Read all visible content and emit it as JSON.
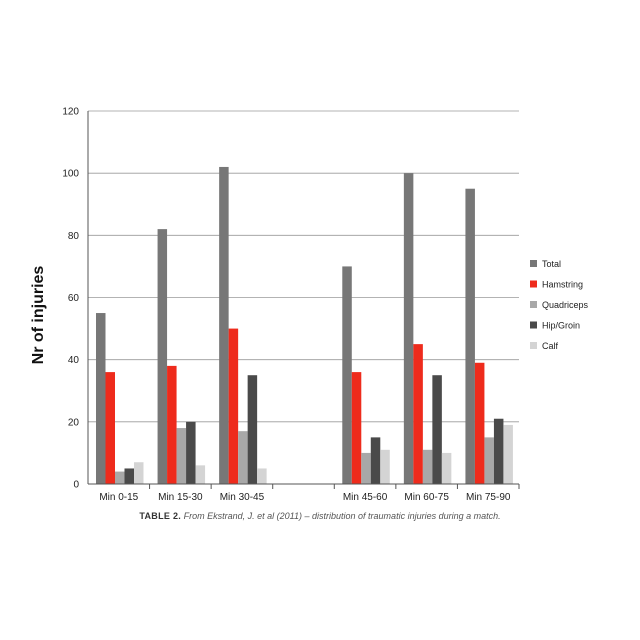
{
  "chart_data": {
    "type": "bar",
    "categories": [
      "Min 0-15",
      "Min 15-30",
      "Min 30-45",
      "",
      "Min 45-60",
      "Min 60-75",
      "Min 75-90"
    ],
    "series": [
      {
        "name": "Total",
        "color": "#777777",
        "values": [
          55,
          82,
          102,
          null,
          70,
          100,
          95
        ]
      },
      {
        "name": "Hamstring",
        "color": "#ee2b1c",
        "values": [
          36,
          38,
          50,
          null,
          36,
          45,
          39
        ]
      },
      {
        "name": "Quadriceps",
        "color": "#a8a8a8",
        "values": [
          4,
          18,
          17,
          null,
          10,
          11,
          15
        ]
      },
      {
        "name": "Hip/Groin",
        "color": "#4a4a4a",
        "values": [
          5,
          20,
          35,
          null,
          15,
          35,
          21
        ]
      },
      {
        "name": "Calf",
        "color": "#d4d4d4",
        "values": [
          7,
          6,
          5,
          null,
          11,
          10,
          19
        ]
      }
    ],
    "ylabel": "Nr of  injuries",
    "ylim": [
      0,
      120
    ],
    "yticks": [
      0,
      20,
      40,
      60,
      80,
      100,
      120
    ],
    "grid": true,
    "legend_position": "right"
  },
  "caption": {
    "label": "TABLE 2.",
    "text": "From Ekstrand, J. et al (2011) – distribution of traumatic injuries during a match."
  }
}
